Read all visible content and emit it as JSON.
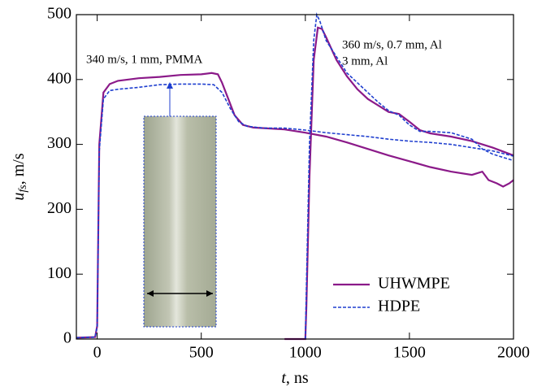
{
  "chart_data": {
    "type": "line",
    "xlabel": [
      "t",
      ", ns"
    ],
    "ylabel": [
      "u",
      "fs",
      ", m/s"
    ],
    "annotations": [
      "340 m/s, 1 mm, PMMA",
      "360 m/s, 0.7 mm, Al",
      "3 mm, Al"
    ],
    "xlim": [
      -100,
      2000
    ],
    "xticks": [
      0,
      500,
      1000,
      1500,
      2000
    ],
    "ylim": [
      0,
      500
    ],
    "yticks": [
      0,
      100,
      200,
      300,
      400,
      500
    ],
    "legend": "lower right",
    "series": [
      {
        "name": "UHWMPE",
        "color": "#8b1a89",
        "dash": false,
        "x": [
          -100,
          -10,
          0,
          10,
          30,
          60,
          100,
          200,
          300,
          400,
          500,
          550,
          580,
          600,
          630,
          660,
          700,
          750,
          800,
          900,
          1000,
          1100,
          1200,
          1300,
          1400,
          1500,
          1600,
          1700,
          1800,
          1850,
          1880,
          1920,
          1950,
          1980,
          2000,
          null,
          900,
          1000,
          1005,
          1020,
          1040,
          1060,
          1080,
          1100,
          1150,
          1200,
          1250,
          1300,
          1350,
          1400,
          1450,
          1500,
          1550,
          1600,
          1700,
          1800,
          1900,
          2000
        ],
        "values": [
          2,
          3,
          20,
          300,
          380,
          393,
          398,
          402,
          404,
          407,
          408,
          410,
          408,
          395,
          370,
          345,
          330,
          326,
          325,
          323,
          318,
          312,
          303,
          293,
          283,
          274,
          265,
          258,
          253,
          258,
          245,
          240,
          235,
          240,
          245,
          null,
          0,
          0,
          50,
          250,
          430,
          480,
          478,
          465,
          430,
          405,
          385,
          370,
          360,
          350,
          347,
          335,
          322,
          317,
          312,
          305,
          295,
          283
        ]
      },
      {
        "name": "HDPE",
        "color": "#1f3fcf",
        "dash": true,
        "x": [
          -100,
          -10,
          0,
          10,
          30,
          60,
          100,
          200,
          300,
          400,
          500,
          560,
          600,
          640,
          680,
          720,
          800,
          900,
          1000,
          1100,
          1200,
          1300,
          1400,
          1500,
          1600,
          1700,
          1800,
          1900,
          2000,
          null,
          1000,
          1005,
          1020,
          1040,
          1055,
          1070,
          1100,
          1150,
          1200,
          1250,
          1300,
          1350,
          1400,
          1450,
          1500,
          1550,
          1600,
          1700,
          1800,
          1850,
          1900,
          1950,
          2000
        ],
        "values": [
          2,
          3,
          20,
          290,
          370,
          383,
          385,
          388,
          392,
          393,
          393,
          392,
          380,
          355,
          335,
          328,
          325,
          325,
          322,
          318,
          315,
          312,
          308,
          305,
          303,
          300,
          295,
          290,
          282,
          null,
          0,
          80,
          300,
          460,
          500,
          490,
          460,
          435,
          410,
          395,
          380,
          365,
          352,
          345,
          330,
          320,
          320,
          318,
          308,
          293,
          285,
          280,
          275
        ]
      }
    ]
  }
}
